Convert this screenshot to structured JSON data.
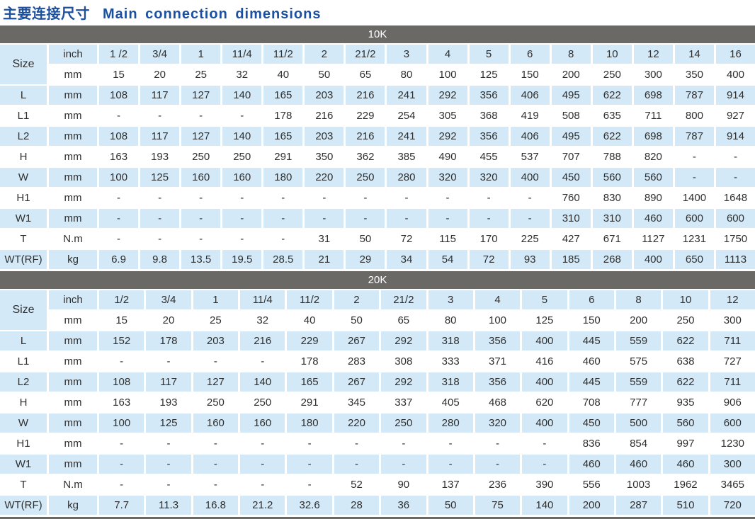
{
  "page_title": {
    "zh": "主要连接尺寸",
    "en": "Main connection dimensions"
  },
  "colors": {
    "title_blue": "#1c4f9e",
    "header_gray": "#6b6966",
    "cell_blue": "#d4e9f7",
    "text": "#2f2f2f"
  },
  "size_row": {
    "label": "Size",
    "inch_label": "inch",
    "mm_label": "mm"
  },
  "sections": [
    {
      "header": "10K",
      "inch_values": [
        "1 /2",
        "3/4",
        "1",
        "11/4",
        "11/2",
        "2",
        "21/2",
        "3",
        "4",
        "5",
        "6",
        "8",
        "10",
        "12",
        "14",
        "16"
      ],
      "mm_values": [
        "15",
        "20",
        "25",
        "32",
        "40",
        "50",
        "65",
        "80",
        "100",
        "125",
        "150",
        "200",
        "250",
        "300",
        "350",
        "400"
      ],
      "rows": [
        {
          "label": "L",
          "unit": "mm",
          "shade": "blue",
          "values": [
            "108",
            "117",
            "127",
            "140",
            "165",
            "203",
            "216",
            "241",
            "292",
            "356",
            "406",
            "495",
            "622",
            "698",
            "787",
            "914"
          ]
        },
        {
          "label": "L1",
          "unit": "mm",
          "shade": "white",
          "values": [
            "-",
            "-",
            "-",
            "-",
            "178",
            "216",
            "229",
            "254",
            "305",
            "368",
            "419",
            "508",
            "635",
            "711",
            "800",
            "927"
          ]
        },
        {
          "label": "L2",
          "unit": "mm",
          "shade": "blue",
          "values": [
            "108",
            "117",
            "127",
            "140",
            "165",
            "203",
            "216",
            "241",
            "292",
            "356",
            "406",
            "495",
            "622",
            "698",
            "787",
            "914"
          ]
        },
        {
          "label": "H",
          "unit": "mm",
          "shade": "white",
          "values": [
            "163",
            "193",
            "250",
            "250",
            "291",
            "350",
            "362",
            "385",
            "490",
            "455",
            "537",
            "707",
            "788",
            "820",
            "-",
            "-"
          ]
        },
        {
          "label": "W",
          "unit": "mm",
          "shade": "blue",
          "values": [
            "100",
            "125",
            "160",
            "160",
            "180",
            "220",
            "250",
            "280",
            "320",
            "320",
            "400",
            "450",
            "560",
            "560",
            "-",
            "-"
          ]
        },
        {
          "label": "H1",
          "unit": "mm",
          "shade": "white",
          "values": [
            "-",
            "-",
            "-",
            "-",
            "-",
            "-",
            "-",
            "-",
            "-",
            "-",
            "-",
            "760",
            "830",
            "890",
            "1400",
            "1648"
          ]
        },
        {
          "label": "W1",
          "unit": "mm",
          "shade": "blue",
          "values": [
            "-",
            "-",
            "-",
            "-",
            "-",
            "-",
            "-",
            "-",
            "-",
            "-",
            "-",
            "310",
            "310",
            "460",
            "600",
            "600"
          ]
        },
        {
          "label": "T",
          "unit": "N.m",
          "shade": "white",
          "values": [
            "-",
            "-",
            "-",
            "-",
            "-",
            "31",
            "50",
            "72",
            "115",
            "170",
            "225",
            "427",
            "671",
            "1127",
            "1231",
            "1750"
          ]
        },
        {
          "label": "WT(RF)",
          "unit": "kg",
          "shade": "blue",
          "values": [
            "6.9",
            "9.8",
            "13.5",
            "19.5",
            "28.5",
            "21",
            "29",
            "34",
            "54",
            "72",
            "93",
            "185",
            "268",
            "400",
            "650",
            "1113"
          ]
        }
      ]
    },
    {
      "header": "20K",
      "inch_values": [
        "1/2",
        "3/4",
        "1",
        "11/4",
        "11/2",
        "2",
        "21/2",
        "3",
        "4",
        "5",
        "6",
        "8",
        "10",
        "12"
      ],
      "mm_values": [
        "15",
        "20",
        "25",
        "32",
        "40",
        "50",
        "65",
        "80",
        "100",
        "125",
        "150",
        "200",
        "250",
        "300"
      ],
      "rows": [
        {
          "label": "L",
          "unit": "mm",
          "shade": "blue",
          "values": [
            "152",
            "178",
            "203",
            "216",
            "229",
            "267",
            "292",
            "318",
            "356",
            "400",
            "445",
            "559",
            "622",
            "711"
          ]
        },
        {
          "label": "L1",
          "unit": "mm",
          "shade": "white",
          "values": [
            "-",
            "-",
            "-",
            "-",
            "178",
            "283",
            "308",
            "333",
            "371",
            "416",
            "460",
            "575",
            "638",
            "727"
          ]
        },
        {
          "label": "L2",
          "unit": "mm",
          "shade": "blue",
          "values": [
            "108",
            "117",
            "127",
            "140",
            "165",
            "267",
            "292",
            "318",
            "356",
            "400",
            "445",
            "559",
            "622",
            "711"
          ]
        },
        {
          "label": "H",
          "unit": "mm",
          "shade": "white",
          "values": [
            "163",
            "193",
            "250",
            "250",
            "291",
            "345",
            "337",
            "405",
            "468",
            "620",
            "708",
            "777",
            "935",
            "906"
          ]
        },
        {
          "label": "W",
          "unit": "mm",
          "shade": "blue",
          "values": [
            "100",
            "125",
            "160",
            "160",
            "180",
            "220",
            "250",
            "280",
            "320",
            "400",
            "450",
            "500",
            "560",
            "600"
          ]
        },
        {
          "label": "H1",
          "unit": "mm",
          "shade": "white",
          "values": [
            "-",
            "-",
            "-",
            "-",
            "-",
            "-",
            "-",
            "-",
            "-",
            "-",
            "836",
            "854",
            "997",
            "1230"
          ]
        },
        {
          "label": "W1",
          "unit": "mm",
          "shade": "blue",
          "values": [
            "-",
            "-",
            "-",
            "-",
            "-",
            "-",
            "-",
            "-",
            "-",
            "-",
            "460",
            "460",
            "460",
            "300"
          ]
        },
        {
          "label": "T",
          "unit": "N.m",
          "shade": "white",
          "values": [
            "-",
            "-",
            "-",
            "-",
            "-",
            "52",
            "90",
            "137",
            "236",
            "390",
            "556",
            "1003",
            "1962",
            "3465"
          ]
        },
        {
          "label": "WT(RF)",
          "unit": "kg",
          "shade": "blue",
          "values": [
            "7.7",
            "11.3",
            "16.8",
            "21.2",
            "32.6",
            "28",
            "36",
            "50",
            "75",
            "140",
            "200",
            "287",
            "510",
            "720"
          ]
        }
      ]
    }
  ]
}
